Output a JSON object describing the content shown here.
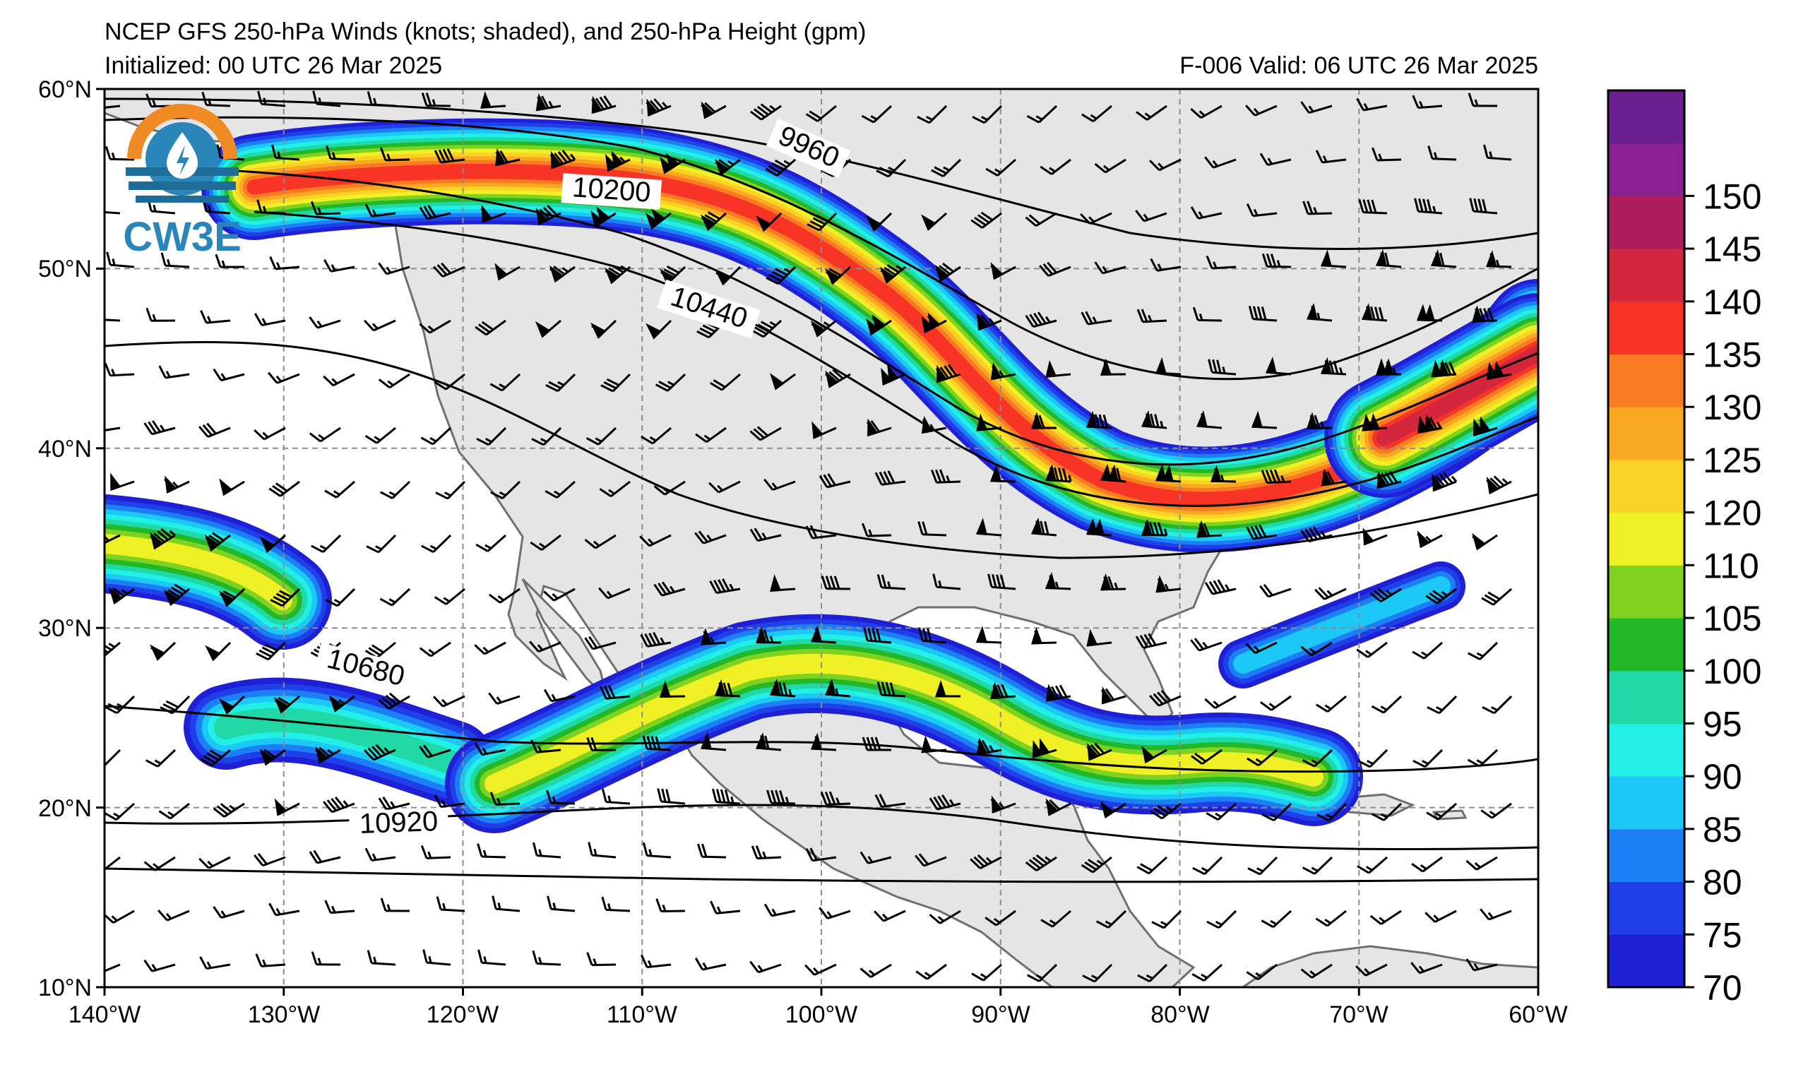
{
  "title": {
    "line1": "NCEP GFS 250-hPa Winds (knots; shaded), and 250-hPa Height (gpm)",
    "initialized": "Initialized: 00 UTC 26 Mar 2025",
    "valid": "F-006  Valid: 06 UTC 26 Mar 2025"
  },
  "logo": {
    "text": "CW3E",
    "icon": "cw3e-logo-icon"
  },
  "axes": {
    "lat_labels": [
      "60°N",
      "50°N",
      "40°N",
      "30°N",
      "20°N",
      "10°N"
    ],
    "lon_labels": [
      "140°W",
      "130°W",
      "120°W",
      "110°W",
      "100°W",
      "90°W",
      "80°W",
      "70°W",
      "60°W"
    ],
    "lat_range": [
      10,
      60
    ],
    "lon_range": [
      -140,
      -60
    ],
    "grid": true
  },
  "colorbar": {
    "labels": [
      "70",
      "75",
      "80",
      "85",
      "90",
      "95",
      "100",
      "105",
      "110",
      "120",
      "125",
      "130",
      "135",
      "140",
      "145",
      "150"
    ],
    "colors": [
      "#1f1fd6",
      "#1f3fe8",
      "#1c7ff5",
      "#1cc8f5",
      "#22f0e6",
      "#21d9a6",
      "#22b827",
      "#7fd21f",
      "#f0f027",
      "#fad225",
      "#f8a921",
      "#f87a23",
      "#f73426",
      "#d4263d",
      "#ad1f5c",
      "#8a2190",
      "#6a1f8f"
    ]
  },
  "contour_labels": [
    "9960",
    "10200",
    "10440",
    "10680",
    "10920"
  ],
  "colors": {
    "land": "#e5e5e5",
    "coast": "#6f6f6f",
    "grid": "#8c8c8c"
  }
}
